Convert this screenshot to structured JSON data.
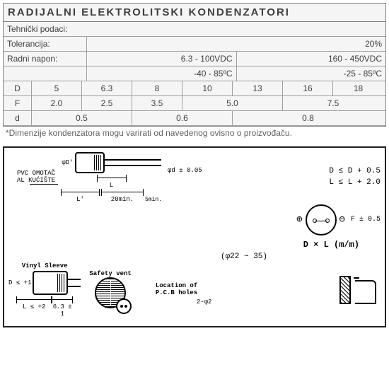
{
  "title": "RADIJALNI ELEKTROLITSKI KONDENZATORI",
  "tech_heading": "Tehnički podaci:",
  "tolerancija_label": "Tolerancija:",
  "tolerancija_value": "20%",
  "napon_label": "Radni napon:",
  "napon_range1": "6.3 - 100VDC",
  "napon_range2": "160 - 450VDC",
  "temp_range1": "-40 - 85ºC",
  "temp_range2": "-25 - 85ºC",
  "dim_table": {
    "rows": [
      {
        "hdr": "D",
        "cells": [
          "5",
          "6.3",
          "8",
          "10",
          "13",
          "16",
          "18"
        ],
        "spans": [
          1,
          1,
          1,
          1,
          1,
          1,
          1
        ]
      },
      {
        "hdr": "F",
        "cells": [
          "2.0",
          "2.5",
          "3.5",
          "5.0",
          "7.5"
        ],
        "spans": [
          1,
          1,
          1,
          2,
          2
        ]
      },
      {
        "hdr": "d",
        "cells": [
          "0.5",
          "0.6",
          "0.8"
        ],
        "spans": [
          2,
          2,
          3
        ]
      }
    ],
    "unit_width": 71
  },
  "footnote": "*Dimenzije kondenzatora mogu varirati od navedenog ovisno o proizvođaču.",
  "diagram": {
    "pvc": "PVC OMOTAČ",
    "al": "AL KUĆIŠTE",
    "phi_d": "φd ± 0.05",
    "phi_D": "φD'",
    "L": "L",
    "Lp": "L'",
    "min20": "20min.",
    "min5": "5min.",
    "tol_D": "D ≤ D + 0.5",
    "tol_L": "L ≤ L + 2.0",
    "F": "F ± 0.5",
    "DxL": "D × L (m/m)",
    "range": "(φ22 ~ 35)",
    "vinyl": "Vinyl Sleeve",
    "safety": "Safety vent",
    "pcb": "Location of P.C.B holes",
    "dtol2": "D ≤ +1",
    "ltol2": "L ≤ +2",
    "pitch": "6.3 ± 1",
    "hole": "2-φ2",
    "plus": "⊕",
    "minus": "⊖"
  }
}
